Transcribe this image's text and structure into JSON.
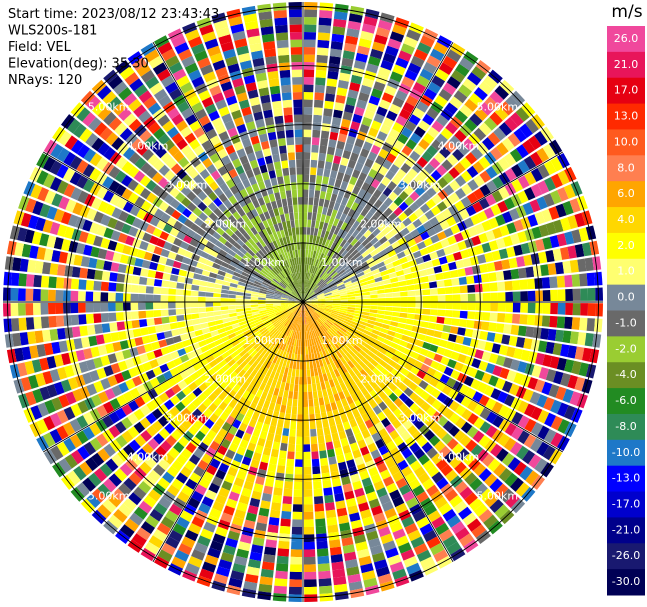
{
  "chart_data": {
    "type": "ppi",
    "header": [
      "Start time: 2023/08/12 23:43:43",
      "WLS200s-181",
      "Field: VEL",
      "Elevation(deg): 35.30",
      "NRays: 120"
    ],
    "colorbar_title": "m/s",
    "colorbar_ticks": [
      {
        "value": 26,
        "label": "26.0"
      },
      {
        "value": 21,
        "label": "21.0"
      },
      {
        "value": 17,
        "label": "17.0"
      },
      {
        "value": 13,
        "label": "13.0"
      },
      {
        "value": 10,
        "label": "10.0"
      },
      {
        "value": 8,
        "label": "8.0"
      },
      {
        "value": 6,
        "label": "6.0"
      },
      {
        "value": 4,
        "label": "4.0"
      },
      {
        "value": 2,
        "label": "2.0"
      },
      {
        "value": 1,
        "label": "1.0"
      },
      {
        "value": 0,
        "label": "0.0"
      },
      {
        "value": -1,
        "label": "-1.0"
      },
      {
        "value": -2,
        "label": "-2.0"
      },
      {
        "value": -4,
        "label": "-4.0"
      },
      {
        "value": -6,
        "label": "-6.0"
      },
      {
        "value": -8,
        "label": "-8.0"
      },
      {
        "value": -10,
        "label": "-10.0"
      },
      {
        "value": -13,
        "label": "-13.0"
      },
      {
        "value": -17,
        "label": "-17.0"
      },
      {
        "value": -21,
        "label": "-21.0"
      },
      {
        "value": -26,
        "label": "-26.0"
      },
      {
        "value": -30,
        "label": "-30.0"
      }
    ],
    "colors": [
      "#f0489c",
      "#e8155a",
      "#e60012",
      "#ff2a00",
      "#ff5a1e",
      "#ff7f50",
      "#ffa500",
      "#ffd700",
      "#ffff00",
      "#ffff70",
      "#778899",
      "#696969",
      "#9acd32",
      "#6b8e23",
      "#228b22",
      "#2e8b57",
      "#1e78c8",
      "#0000ff",
      "#0000cd",
      "#00008b",
      "#191970",
      "#000055"
    ],
    "range_rings": [
      {
        "value": 1,
        "label": "1.00km"
      },
      {
        "value": 2,
        "label": "2.00km"
      },
      {
        "value": 3,
        "label": "3.00km"
      },
      {
        "value": 4,
        "label": "4.00km"
      },
      {
        "value": 5,
        "label": "5.00km"
      }
    ]
  }
}
